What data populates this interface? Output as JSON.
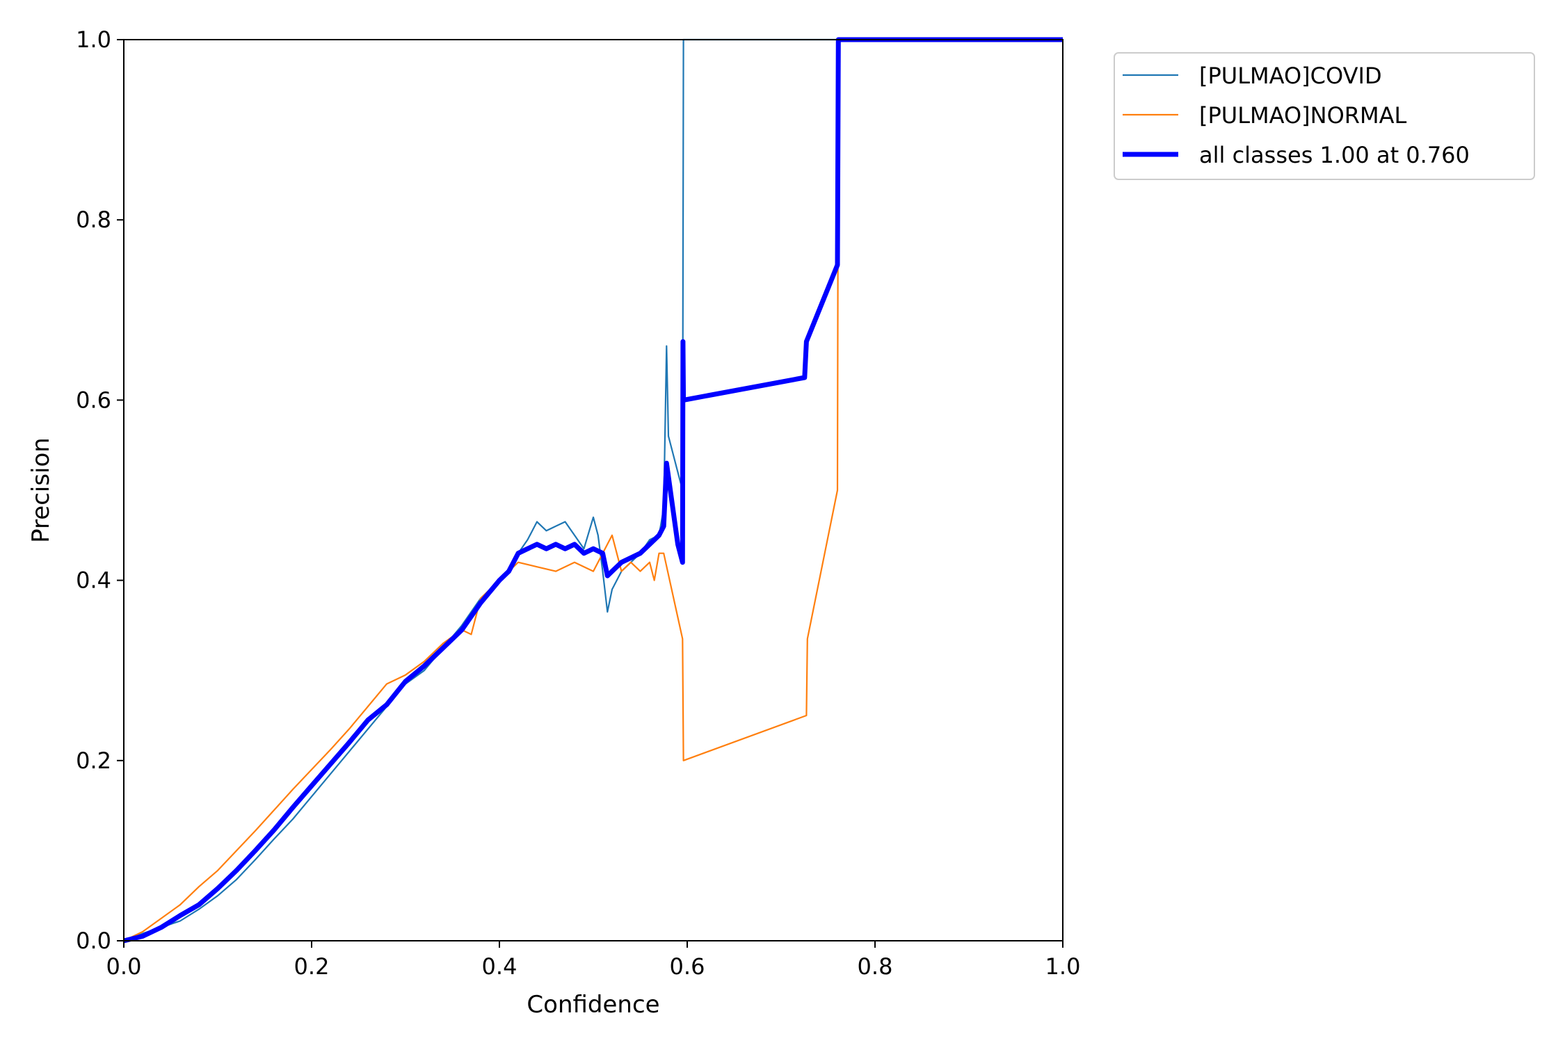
{
  "chart_data": {
    "type": "line",
    "title": "",
    "xlabel": "Confidence",
    "ylabel": "Precision",
    "xlim": [
      0,
      1
    ],
    "ylim": [
      0,
      1
    ],
    "xticks": [
      "0.0",
      "0.2",
      "0.4",
      "0.6",
      "0.8",
      "1.0"
    ],
    "yticks": [
      "0.0",
      "0.2",
      "0.4",
      "0.6",
      "0.8",
      "1.0"
    ],
    "grid": false,
    "legend_position": "outside-top-right",
    "series": [
      {
        "name": "[PULMAO]COVID",
        "color": "#1f77b4",
        "linewidth": "thin",
        "x": [
          0.0,
          0.02,
          0.04,
          0.06,
          0.08,
          0.1,
          0.12,
          0.14,
          0.16,
          0.18,
          0.2,
          0.22,
          0.24,
          0.26,
          0.28,
          0.3,
          0.32,
          0.34,
          0.36,
          0.38,
          0.4,
          0.41,
          0.42,
          0.43,
          0.44,
          0.45,
          0.46,
          0.47,
          0.48,
          0.49,
          0.5,
          0.505,
          0.51,
          0.515,
          0.52,
          0.53,
          0.54,
          0.55,
          0.56,
          0.57,
          0.575,
          0.578,
          0.58,
          0.59,
          0.595,
          0.596,
          0.6,
          1.0
        ],
        "y": [
          0.0,
          0.008,
          0.015,
          0.022,
          0.035,
          0.05,
          0.068,
          0.09,
          0.113,
          0.135,
          0.16,
          0.185,
          0.21,
          0.235,
          0.26,
          0.285,
          0.3,
          0.325,
          0.35,
          0.38,
          0.4,
          0.41,
          0.43,
          0.445,
          0.465,
          0.455,
          0.46,
          0.465,
          0.45,
          0.435,
          0.47,
          0.45,
          0.41,
          0.365,
          0.39,
          0.41,
          0.42,
          0.43,
          0.445,
          0.45,
          0.48,
          0.66,
          0.56,
          0.52,
          0.5,
          1.0,
          1.0,
          1.0
        ]
      },
      {
        "name": "[PULMAO]NORMAL",
        "color": "#ff7f0e",
        "linewidth": "thin",
        "x": [
          0.0,
          0.02,
          0.04,
          0.06,
          0.08,
          0.1,
          0.12,
          0.14,
          0.16,
          0.18,
          0.2,
          0.22,
          0.24,
          0.26,
          0.28,
          0.3,
          0.32,
          0.34,
          0.36,
          0.37,
          0.38,
          0.4,
          0.42,
          0.44,
          0.46,
          0.48,
          0.5,
          0.51,
          0.52,
          0.53,
          0.54,
          0.55,
          0.56,
          0.565,
          0.57,
          0.575,
          0.595,
          0.596,
          0.727,
          0.728,
          0.76,
          0.761
        ],
        "y": [
          0.0,
          0.01,
          0.025,
          0.04,
          0.06,
          0.078,
          0.1,
          0.122,
          0.145,
          0.168,
          0.19,
          0.212,
          0.235,
          0.26,
          0.285,
          0.295,
          0.31,
          0.33,
          0.345,
          0.34,
          0.38,
          0.4,
          0.42,
          0.415,
          0.41,
          0.42,
          0.41,
          0.43,
          0.45,
          0.41,
          0.42,
          0.41,
          0.42,
          0.4,
          0.43,
          0.43,
          0.335,
          0.2,
          0.25,
          0.335,
          0.5,
          1.0
        ]
      },
      {
        "name": "all classes 1.00 at 0.760",
        "color": "#0000ff",
        "linewidth": "thick",
        "x": [
          0.0,
          0.02,
          0.04,
          0.06,
          0.08,
          0.1,
          0.12,
          0.14,
          0.16,
          0.18,
          0.2,
          0.22,
          0.24,
          0.26,
          0.28,
          0.3,
          0.32,
          0.34,
          0.36,
          0.38,
          0.4,
          0.41,
          0.42,
          0.43,
          0.44,
          0.45,
          0.46,
          0.47,
          0.48,
          0.49,
          0.5,
          0.51,
          0.515,
          0.52,
          0.53,
          0.54,
          0.55,
          0.56,
          0.57,
          0.575,
          0.578,
          0.59,
          0.595,
          0.5955,
          0.596,
          0.725,
          0.727,
          0.76,
          0.761,
          1.0
        ],
        "y": [
          0.0,
          0.005,
          0.015,
          0.028,
          0.04,
          0.058,
          0.078,
          0.1,
          0.123,
          0.148,
          0.172,
          0.196,
          0.22,
          0.245,
          0.262,
          0.288,
          0.305,
          0.325,
          0.345,
          0.375,
          0.4,
          0.41,
          0.43,
          0.435,
          0.44,
          0.435,
          0.44,
          0.435,
          0.44,
          0.43,
          0.435,
          0.43,
          0.405,
          0.41,
          0.42,
          0.425,
          0.43,
          0.44,
          0.45,
          0.46,
          0.53,
          0.44,
          0.42,
          0.665,
          0.6,
          0.625,
          0.665,
          0.75,
          1.0,
          1.0
        ]
      }
    ]
  }
}
